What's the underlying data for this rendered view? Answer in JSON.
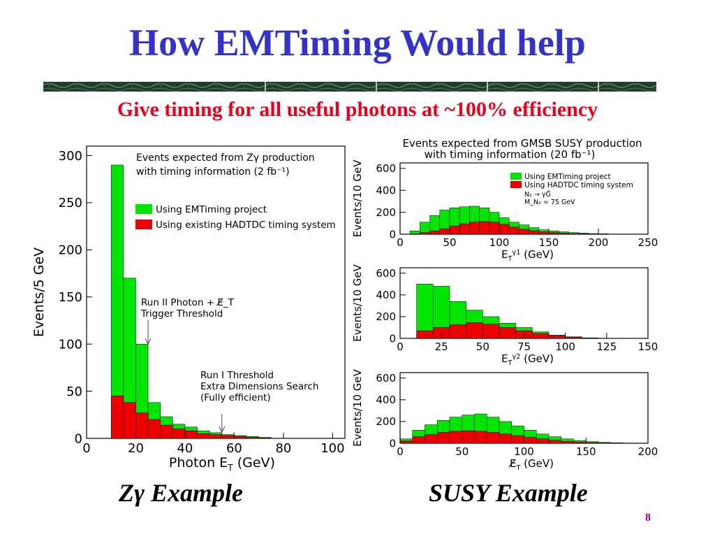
{
  "slide": {
    "title": "How EMTiming Would help",
    "subtitle": "Give timing for all useful photons at ~100% efficiency",
    "caption_left_symbol": "Zγ",
    "caption_left_text": "Example",
    "caption_right": "SUSY Example",
    "page_number": "8",
    "colors": {
      "title": "#3333cc",
      "subtitle": "#e8001c",
      "green": "#00e600",
      "red": "#ee0000",
      "page": "#9900aa"
    }
  },
  "chart_data": [
    {
      "type": "area",
      "style": "stacked-histogram",
      "title": "Events expected from Zγ production",
      "subtitle": "with timing information (2 fb⁻¹)",
      "xlabel": "Photon E_T (GeV)",
      "ylabel": "Events/5 GeV",
      "xlim": [
        0,
        105
      ],
      "ylim": [
        0,
        310
      ],
      "xticks": [
        0,
        20,
        40,
        60,
        80,
        100
      ],
      "yticks": [
        0,
        50,
        100,
        150,
        200,
        250,
        300
      ],
      "bin_edges": [
        10,
        15,
        20,
        25,
        30,
        35,
        40,
        45,
        50,
        55,
        60,
        65,
        70,
        75
      ],
      "series": [
        {
          "name": "Using EMTiming project",
          "color": "#00e600",
          "values": [
            290,
            170,
            100,
            38,
            23,
            15,
            12,
            8,
            6,
            4,
            3,
            2,
            1
          ]
        },
        {
          "name": "Using existing HADTDC timing system",
          "color": "#ee0000",
          "values": [
            45,
            38,
            27,
            20,
            14,
            10,
            8,
            5,
            4,
            3,
            2,
            1,
            0.5
          ]
        }
      ],
      "legend": "upper-right",
      "annotations": [
        {
          "text_lines": [
            "Run II Photon + E̸_T",
            "Trigger Threshold"
          ],
          "arrow_x": 25,
          "arrow_y": 100
        },
        {
          "text_lines": [
            "Run I Threshold",
            "Extra Dimensions Search",
            "(Fully efficient)"
          ],
          "arrow_x": 55,
          "arrow_y": 5
        }
      ]
    },
    {
      "type": "area",
      "style": "stacked-histogram",
      "title": "Events expected from GMSB SUSY production",
      "subtitle": "with timing information (20 fb⁻¹)",
      "xlabel": "E_T^γ1 (GeV)",
      "ylabel": "Events/10 GeV",
      "xlim": [
        0,
        250
      ],
      "ylim": [
        0,
        650
      ],
      "xticks": [
        0,
        50,
        100,
        150,
        200,
        250
      ],
      "yticks": [
        0,
        200,
        400,
        600
      ],
      "bin_edges": [
        10,
        20,
        30,
        40,
        50,
        60,
        70,
        80,
        90,
        100,
        110,
        120,
        130,
        140,
        150,
        160,
        170,
        180,
        190,
        200,
        210
      ],
      "series": [
        {
          "name": "Using EMTiming project",
          "color": "#00e600",
          "values": [
            30,
            110,
            170,
            220,
            240,
            250,
            255,
            240,
            200,
            150,
            110,
            85,
            60,
            40,
            30,
            22,
            15,
            10,
            6,
            4
          ]
        },
        {
          "name": "Using HADTDC timing system",
          "color": "#ee0000",
          "values": [
            3,
            15,
            30,
            50,
            75,
            95,
            110,
            115,
            110,
            90,
            65,
            45,
            32,
            22,
            15,
            10,
            6,
            4,
            2,
            1
          ]
        }
      ],
      "legend": "upper-right",
      "legend_notes": [
        "N₂ → γG̃",
        "M_N₂ = 75 GeV"
      ]
    },
    {
      "type": "area",
      "style": "stacked-histogram",
      "xlabel": "E_T^γ2 (GeV)",
      "ylabel": "Events/10 GeV",
      "xlim": [
        0,
        150
      ],
      "ylim": [
        0,
        650
      ],
      "xticks": [
        0,
        25,
        50,
        75,
        100,
        125,
        150
      ],
      "yticks": [
        0,
        200,
        400,
        600
      ],
      "bin_edges": [
        10,
        20,
        30,
        40,
        50,
        60,
        70,
        80,
        90,
        100,
        110,
        120
      ],
      "series": [
        {
          "name": "Using EMTiming project",
          "color": "#00e600",
          "values": [
            500,
            480,
            340,
            260,
            200,
            140,
            100,
            60,
            30,
            15,
            5
          ]
        },
        {
          "name": "Using HADTDC timing system",
          "color": "#ee0000",
          "values": [
            70,
            100,
            125,
            145,
            130,
            100,
            70,
            45,
            25,
            10,
            3
          ]
        }
      ]
    },
    {
      "type": "area",
      "style": "stacked-histogram",
      "xlabel": "E̸_T (GeV)",
      "ylabel": "Events/10 GeV",
      "xlim": [
        0,
        200
      ],
      "ylim": [
        0,
        650
      ],
      "xticks": [
        0,
        50,
        100,
        150,
        200
      ],
      "yticks": [
        0,
        200,
        400,
        600
      ],
      "bin_edges": [
        0,
        10,
        20,
        30,
        40,
        50,
        60,
        70,
        80,
        90,
        100,
        110,
        120,
        130,
        140,
        150,
        160,
        170,
        180,
        190
      ],
      "series": [
        {
          "name": "Using EMTiming project",
          "color": "#00e600",
          "values": [
            40,
            120,
            170,
            210,
            240,
            260,
            270,
            240,
            200,
            160,
            120,
            85,
            60,
            40,
            25,
            15,
            8,
            4,
            2
          ]
        },
        {
          "name": "Using HADTDC timing system",
          "color": "#ee0000",
          "values": [
            20,
            60,
            80,
            100,
            110,
            115,
            110,
            100,
            85,
            70,
            55,
            40,
            28,
            18,
            10,
            6,
            3,
            2,
            1
          ]
        }
      ]
    }
  ]
}
